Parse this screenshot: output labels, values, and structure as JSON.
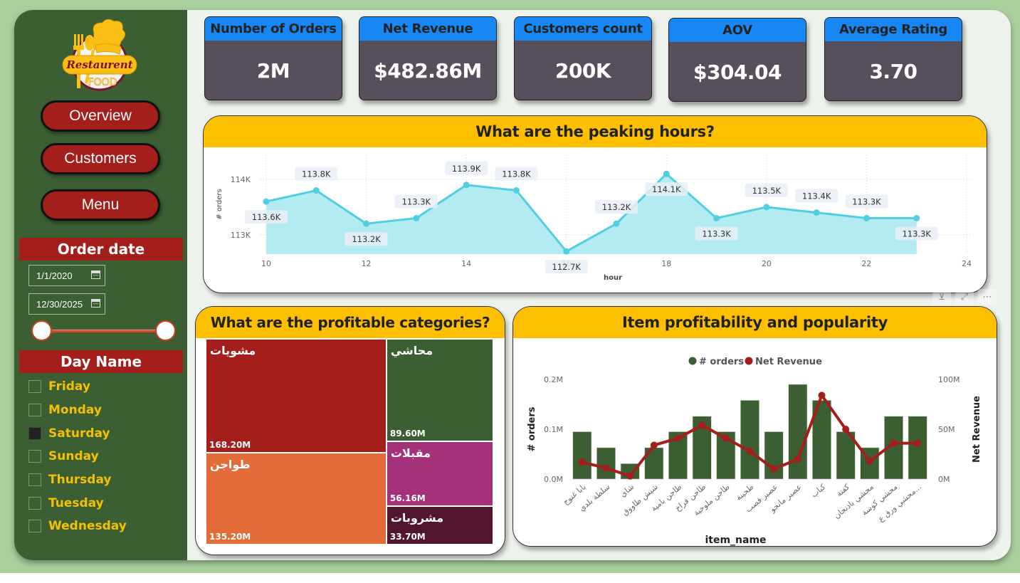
{
  "sidebar": {
    "logo": {
      "top_text": "Restaurent",
      "bottom_text": "FOOD"
    },
    "nav": [
      {
        "label": "Overview"
      },
      {
        "label": "Customers"
      },
      {
        "label": "Menu"
      }
    ],
    "order_date": {
      "title": "Order date",
      "start": "1/1/2020",
      "end": "12/30/2025",
      "range_fraction": [
        0,
        1
      ]
    },
    "day_name": {
      "title": "Day Name",
      "items": [
        {
          "label": "Friday",
          "checked": false
        },
        {
          "label": "Monday",
          "checked": false
        },
        {
          "label": "Saturday",
          "checked": true
        },
        {
          "label": "Sunday",
          "checked": false
        },
        {
          "label": "Thursday",
          "checked": false
        },
        {
          "label": "Tuesday",
          "checked": false
        },
        {
          "label": "Wednesday",
          "checked": false
        }
      ]
    }
  },
  "kpis": [
    {
      "title": "Number of Orders",
      "value": "2M"
    },
    {
      "title": "Net Revenue",
      "value": "$482.86M"
    },
    {
      "title": "Customers count",
      "value": "200K"
    },
    {
      "title": "AOV",
      "value": "$304.04"
    },
    {
      "title": "Average Rating",
      "value": "3.70"
    }
  ],
  "colors": {
    "sidebar": "#3b5e33",
    "accent_red": "#a41f1b",
    "kpi_header": "#1787f3",
    "kpi_body": "#574f5b",
    "panel_header": "#fdc000",
    "line": "#4fcfe0",
    "area": "#b3ebf2",
    "bar": "#3b5e33",
    "revenue_line": "#a41f1b"
  },
  "visual_header_icons": [
    "filter-icon",
    "focus-mode-icon",
    "more-options-icon"
  ],
  "chart_data": [
    {
      "type": "area",
      "title": "What are the peaking hours?",
      "xlabel": "hour",
      "ylabel": "# orders",
      "x": [
        10,
        11,
        12,
        13,
        14,
        15,
        16,
        17,
        18,
        19,
        20,
        21,
        22,
        23
      ],
      "values": [
        113600,
        113800,
        113200,
        113300,
        113900,
        113800,
        112700,
        113200,
        114100,
        113300,
        113500,
        113400,
        113300,
        113300
      ],
      "data_labels": [
        "113.6K",
        "113.8K",
        "113.2K",
        "113.3K",
        "113.9K",
        "113.8K",
        "112.7K",
        "113.2K",
        "114.1K",
        "113.3K",
        "113.5K",
        "113.4K",
        "113.3K",
        "113.3K"
      ],
      "x_ticks": [
        "10",
        "12",
        "14",
        "16",
        "18",
        "20",
        "22",
        "24"
      ],
      "y_ticks": [
        "113K",
        "114K"
      ],
      "xlim": [
        10,
        24
      ],
      "ylim": [
        112650,
        114450
      ],
      "grid": true
    },
    {
      "type": "treemap",
      "title": "What are the profitable categories?",
      "items": [
        {
          "name": "مشويات",
          "value": 168.2,
          "label": "168.20M",
          "color": "#a41f1b"
        },
        {
          "name": "طواجن",
          "value": 135.2,
          "label": "135.20M",
          "color": "#e36c39"
        },
        {
          "name": "محاشي",
          "value": 89.6,
          "label": "89.60M",
          "color": "#3b5e33"
        },
        {
          "name": "مقبلات",
          "value": 56.16,
          "label": "56.16M",
          "color": "#a4317a"
        },
        {
          "name": "مشروبات",
          "value": 33.7,
          "label": "33.70M",
          "color": "#521530"
        }
      ]
    },
    {
      "type": "bar+line",
      "title": "Item profitability and popularity",
      "xlabel": "item_name",
      "legend": [
        "# orders",
        "Net Revenue"
      ],
      "legend_position": "top-center",
      "categories": [
        "بابا غنوج",
        "سلطة بلدي",
        "شاي",
        "شيش طاووق",
        "طاجن بامية",
        "طاجن فراخ",
        "طاجن ملوخية",
        "طحينة",
        "عصير قصب",
        "عصير مانجو",
        "كباب",
        "كفتة",
        "محشي باذنجان",
        "محشي كوسة",
        "محشي ورق ع..."
      ],
      "series": [
        {
          "name": "# orders",
          "axis": "left",
          "type": "bar",
          "values": [
            0.095,
            0.063,
            0.031,
            0.063,
            0.095,
            0.126,
            0.095,
            0.158,
            0.095,
            0.19,
            0.158,
            0.095,
            0.063,
            0.126,
            0.126
          ]
        },
        {
          "name": "Net Revenue",
          "axis": "right",
          "type": "line",
          "values": [
            17,
            11,
            3,
            34,
            41,
            54,
            41,
            28,
            10,
            20,
            84,
            50,
            18,
            36,
            36
          ]
        }
      ],
      "y_left": {
        "label": "# orders",
        "ticks": [
          "0.0M",
          "0.1M",
          "0.2M"
        ],
        "range": [
          0,
          0.2
        ],
        "unit": "M"
      },
      "y_right": {
        "label": "Net Revenue",
        "ticks": [
          "0M",
          "50M",
          "100M"
        ],
        "range": [
          0,
          100
        ],
        "unit": "M"
      }
    }
  ]
}
